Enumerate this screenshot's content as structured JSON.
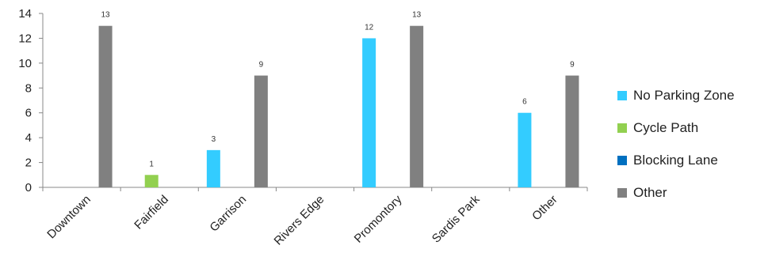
{
  "chart_data": {
    "type": "bar",
    "categories": [
      "Downtown",
      "Fairfield",
      "Garrison",
      "Rivers Edge",
      "Promontory",
      "Sardis Park",
      "Other"
    ],
    "series": [
      {
        "name": "No Parking Zone",
        "color": "#33ccff",
        "values": [
          null,
          null,
          3,
          null,
          12,
          null,
          6
        ]
      },
      {
        "name": "Cycle Path",
        "color": "#92d050",
        "values": [
          null,
          1,
          null,
          null,
          null,
          null,
          null
        ]
      },
      {
        "name": "Blocking Lane",
        "color": "#0070c0",
        "values": [
          null,
          null,
          null,
          null,
          null,
          null,
          null
        ]
      },
      {
        "name": "Other",
        "color": "#808080",
        "values": [
          13,
          null,
          9,
          null,
          13,
          null,
          9
        ]
      }
    ],
    "yticks": [
      "0",
      "2",
      "4",
      "6",
      "8",
      "10",
      "12",
      "14"
    ],
    "ylim": [
      0,
      14
    ],
    "grid": false,
    "legend": "right",
    "title": "",
    "xlabel": "",
    "ylabel": ""
  }
}
